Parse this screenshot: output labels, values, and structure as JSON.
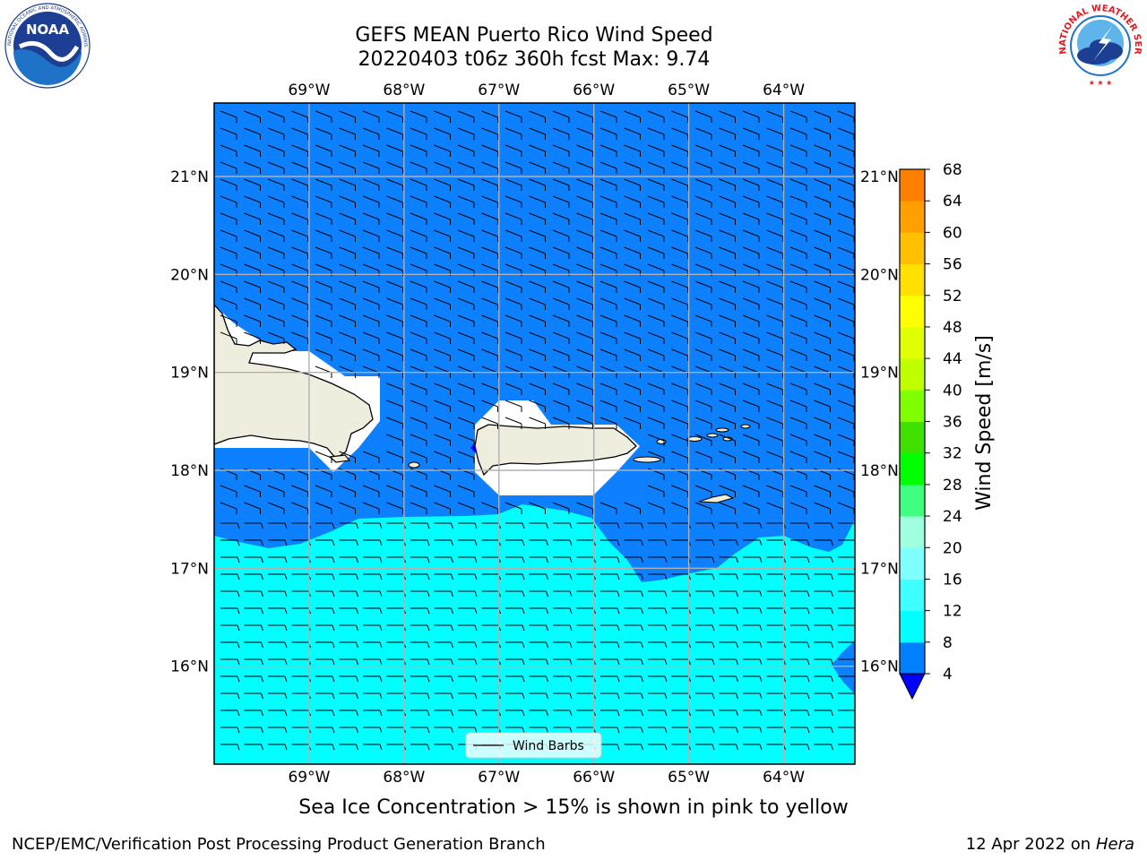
{
  "title": {
    "line1": "GEFS MEAN Puerto Rico Wind Speed",
    "line2": "20220403 t06z 360h fcst   Max: 9.74"
  },
  "logos": {
    "noaa": {
      "text": "NOAA",
      "ring_text": "NATIONAL OCEANIC AND ATMOSPHERIC ADMINISTRATION · U.S. DEPARTMENT OF COMMERCE",
      "icon": "noaa-logo"
    },
    "nws": {
      "ring_text": "NATIONAL WEATHER SERVICE",
      "icon": "nws-logo"
    }
  },
  "map": {
    "lon_ticks": [
      "69°W",
      "68°W",
      "67°W",
      "66°W",
      "65°W",
      "64°W"
    ],
    "lat_ticks": [
      "21°N",
      "20°N",
      "19°N",
      "18°N",
      "17°N",
      "16°N"
    ],
    "lon_range": [
      -70.0,
      -63.25
    ],
    "lat_range": [
      15.0,
      21.75
    ],
    "grid": true,
    "legend_label": "Wind Barbs",
    "colors": {
      "land": "#eeedde",
      "below_8": "#0c80ff",
      "8_to_12": "#00ffff",
      "no_data": "#ffffff"
    }
  },
  "colorbar": {
    "label": "Wind Speed [m/s]",
    "ticks": [
      "68",
      "64",
      "60",
      "56",
      "52",
      "48",
      "44",
      "40",
      "36",
      "32",
      "28",
      "24",
      "20",
      "16",
      "12",
      "8",
      "4"
    ],
    "colors": [
      "#0000ff",
      "#0080ff",
      "#00ffff",
      "#40ffff",
      "#80ffff",
      "#a0ffe0",
      "#40ff80",
      "#00ff00",
      "#40e000",
      "#80ff00",
      "#c0ff00",
      "#e0ff00",
      "#ffff00",
      "#ffe000",
      "#ffc000",
      "#ffa000",
      "#ff8000",
      "#ff6000",
      "#ff3000",
      "#ff0000"
    ]
  },
  "bottom_note": "Sea Ice Concentration > 15% is shown in pink to yellow",
  "footer": {
    "left": "NCEP/EMC/Verification Post Processing Product Generation Branch",
    "right_date": "12 Apr 2022 on ",
    "right_host": "Hera"
  }
}
